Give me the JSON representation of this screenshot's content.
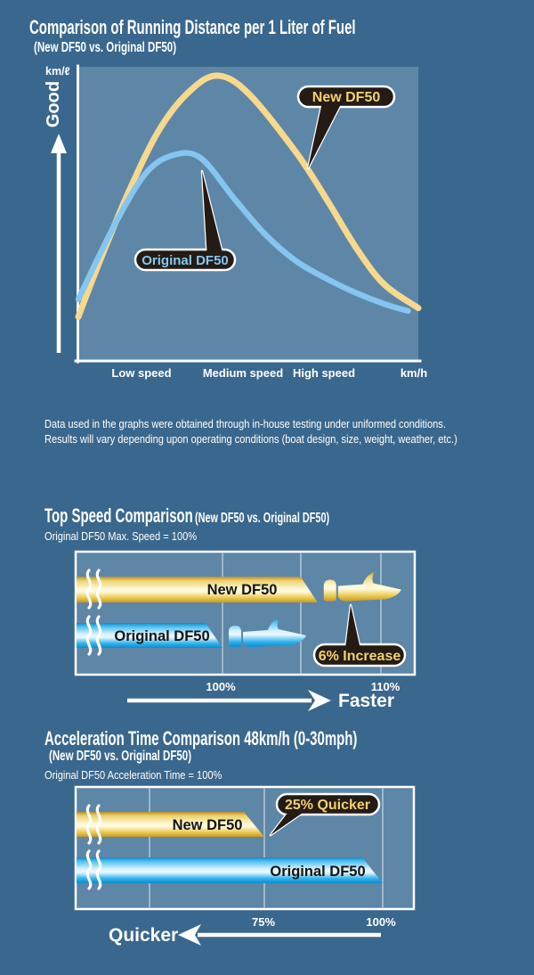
{
  "disclaimer": {
    "line1": "Data used in the graphs were obtained through in-house testing under uniformed conditions.",
    "line2": "Results will vary depending upon operating conditions (boat design, size, weight, weather, etc.)"
  },
  "chart_data": [
    {
      "id": "fuel-economy",
      "type": "line",
      "title": "Comparison of Running Distance per 1 Liter of Fuel",
      "subtitle": "(New DF50 vs. Original DF50)",
      "ylabel": "km/ℓ",
      "xlabel": "km/h",
      "better_direction": "Good",
      "x_labels": [
        "Low speed",
        "Medium speed",
        "High speed"
      ],
      "axis_note": "qualitative curves, points normalized 0-100 on both axes",
      "series": [
        {
          "name": "New DF50",
          "color": "#f7d88c",
          "points": [
            [
              0,
              15
            ],
            [
              6,
              33
            ],
            [
              15,
              58
            ],
            [
              24,
              79
            ],
            [
              33,
              92
            ],
            [
              41,
              97
            ],
            [
              50,
              91
            ],
            [
              64,
              71
            ],
            [
              73,
              55
            ],
            [
              82,
              38
            ],
            [
              90,
              26
            ],
            [
              100,
              18
            ]
          ]
        },
        {
          "name": "Original DF50",
          "color": "#85c5ef",
          "points": [
            [
              0,
              21
            ],
            [
              11,
              47
            ],
            [
              20,
              64
            ],
            [
              28,
              70
            ],
            [
              36,
              69
            ],
            [
              46,
              55
            ],
            [
              55,
              43
            ],
            [
              64,
              34
            ],
            [
              73,
              28
            ],
            [
              82,
              23
            ],
            [
              91,
              19
            ],
            [
              97,
              17
            ]
          ]
        }
      ]
    },
    {
      "id": "top-speed",
      "type": "bar",
      "title": "Top Speed Comparison",
      "subtitle": "(New DF50 vs. Original DF50)",
      "note": "Original DF50 Max. Speed = 100%",
      "unit": "%",
      "ticks": [
        "100%",
        "110%"
      ],
      "tick_values": [
        100,
        110
      ],
      "series": [
        {
          "name": "New DF50",
          "value": 106
        },
        {
          "name": "Original DF50",
          "value": 100
        }
      ],
      "callout": "6% Increase",
      "direction_label": "Faster"
    },
    {
      "id": "acceleration-time",
      "type": "bar",
      "title": "Acceleration Time Comparison 48km/h (0-30mph)",
      "subtitle": "(New DF50 vs. Original DF50)",
      "note": "Original DF50 Acceleration Time = 100%",
      "unit": "%",
      "ticks": [
        "75%",
        "100%"
      ],
      "tick_values": [
        75,
        100
      ],
      "series": [
        {
          "name": "New DF50",
          "value": 75
        },
        {
          "name": "Original DF50",
          "value": 100
        }
      ],
      "callout": "25% Quicker",
      "direction_label": "Quicker"
    }
  ],
  "colors": {
    "background": "#3a678d",
    "panel": "#5e86a7",
    "new_df50": "#f7d88c",
    "original_df50": "#85c5ef",
    "callout_bg": "#241b14"
  }
}
